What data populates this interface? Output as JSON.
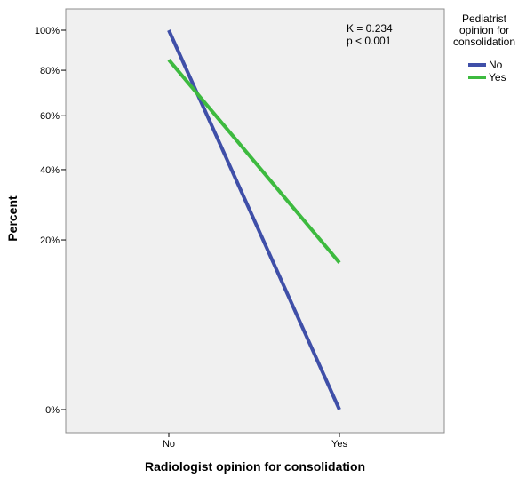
{
  "chart_data": {
    "type": "line",
    "title": "",
    "xlabel": "Radiologist opinion for consolidation",
    "ylabel": "Percent",
    "categories": [
      "No",
      "Yes"
    ],
    "y_ticks": [
      0,
      20,
      40,
      60,
      80,
      100
    ],
    "y_tick_labels": [
      "0%",
      "20%",
      "40%",
      "60%",
      "80%",
      "100%"
    ],
    "y_scale": "sqrt",
    "ylim": [
      0,
      100
    ],
    "grid": false,
    "legend": {
      "title_lines": [
        "Pediatrist",
        "opinion for",
        "consolidation"
      ],
      "placement": "right"
    },
    "annotation": {
      "lines": [
        "K = 0.234",
        "p < 0.001"
      ],
      "placement": "top-right"
    },
    "series": [
      {
        "name": "No",
        "color": "#3f4fa8",
        "values": [
          100,
          0
        ]
      },
      {
        "name": "Yes",
        "color": "#3dba3f",
        "values": [
          85,
          15
        ]
      }
    ]
  }
}
